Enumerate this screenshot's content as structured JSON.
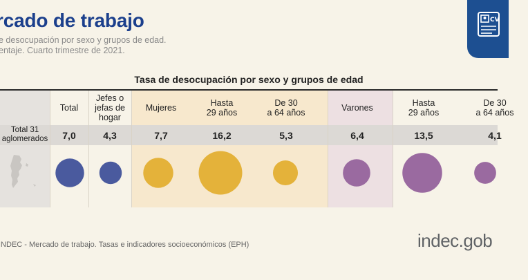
{
  "header": {
    "title": "rcado de trabajo",
    "subtitle_line1": "e desocupación por sexo y grupos de edad.",
    "subtitle_line2": "entaje. Cuarto trimestre de 2021."
  },
  "source": "INDEC - Mercado de trabajo. Tasas e indicadores socioeconómicos (EPH)",
  "logo_text": "indec.gob",
  "colors": {
    "total": "#4a5a9e",
    "mujeres": "#e4b23a",
    "varones": "#9a6aa0",
    "band_mujeres": "#f7e8cd",
    "band_varones": "#ede0e2",
    "badge": "#1d4f91",
    "title": "#1b3f8c"
  },
  "badge_icon": "cv-document-icon",
  "chart_data": {
    "type": "table",
    "title": "Tasa de desocupación por sexo y grupos de edad",
    "row_label": "Total 31\naglomerados",
    "map_icon": "argentina-map-icon",
    "categories": [
      "Total",
      "Jefes o\njefas de\nhogar",
      "Mujeres",
      "Hasta\n29 años",
      "De 30\na 64 años",
      "Varones",
      "Hasta\n29 años",
      "De 30\na 64 años"
    ],
    "values": [
      7.0,
      4.3,
      7.7,
      16.2,
      5.3,
      6.4,
      13.5,
      4.1
    ],
    "value_labels": [
      "7,0",
      "4,3",
      "7,7",
      "16,2",
      "5,3",
      "6,4",
      "13,5",
      "4,1"
    ],
    "groups": [
      "total",
      "total",
      "mujeres",
      "mujeres",
      "mujeres",
      "varones",
      "varones",
      "varones"
    ],
    "bubble_encoding": "area proportional to value"
  }
}
